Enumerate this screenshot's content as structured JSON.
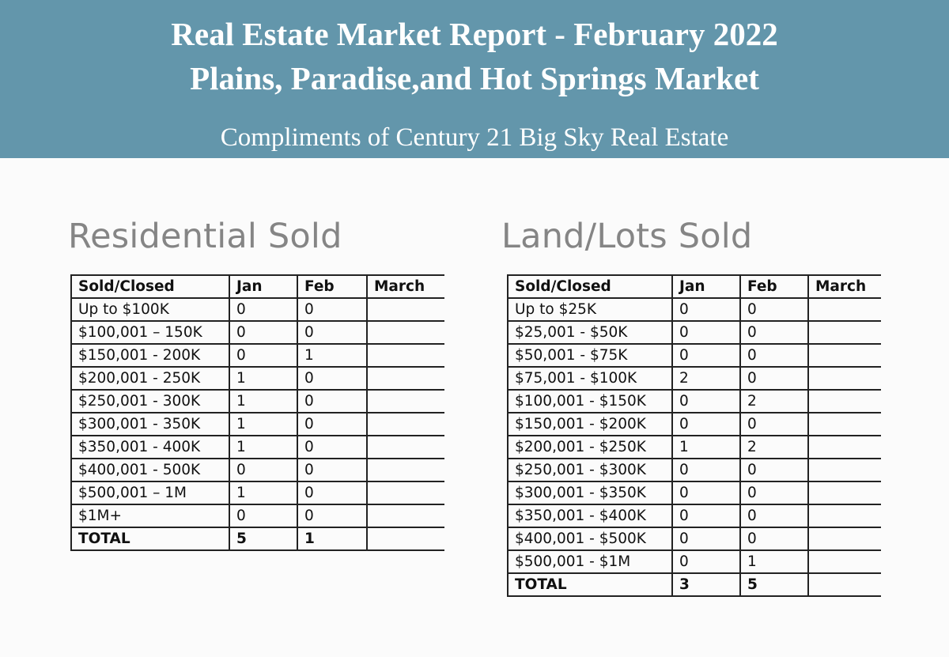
{
  "header": {
    "title_line1": "Real Estate Market Report - February 2022",
    "title_line2": "Plains, Paradise,and Hot Springs Market",
    "subtitle": "Compliments of Century 21 Big Sky Real Estate",
    "background_color": "#6396ab"
  },
  "residential": {
    "title": "Residential Sold",
    "columns": [
      "Sold/Closed",
      "Jan",
      "Feb",
      "March"
    ],
    "rows": [
      {
        "range": "Up to $100K",
        "jan": "0",
        "feb": "0",
        "march": ""
      },
      {
        "range": "$100,001 – 150K",
        "jan": "0",
        "feb": "0",
        "march": ""
      },
      {
        "range": "$150,001 - 200K",
        "jan": "0",
        "feb": "1",
        "march": ""
      },
      {
        "range": "$200,001 - 250K",
        "jan": "1",
        "feb": "0",
        "march": ""
      },
      {
        "range": "$250,001 - 300K",
        "jan": "1",
        "feb": "0",
        "march": ""
      },
      {
        "range": "$300,001 - 350K",
        "jan": "1",
        "feb": "0",
        "march": ""
      },
      {
        "range": "$350,001 - 400K",
        "jan": "1",
        "feb": "0",
        "march": ""
      },
      {
        "range": "$400,001 - 500K",
        "jan": "0",
        "feb": "0",
        "march": ""
      },
      {
        "range": "$500,001 – 1M",
        "jan": "1",
        "feb": "0",
        "march": ""
      },
      {
        "range": "$1M+",
        "jan": "0",
        "feb": "0",
        "march": ""
      }
    ],
    "total": {
      "range": "TOTAL",
      "jan": "5",
      "feb": "1",
      "march": ""
    }
  },
  "land": {
    "title": "Land/Lots Sold",
    "columns": [
      "Sold/Closed",
      "Jan",
      "Feb",
      "March"
    ],
    "rows": [
      {
        "range": "Up to $25K",
        "jan": "0",
        "feb": "0",
        "march": ""
      },
      {
        "range": "$25,001 - $50K",
        "jan": "0",
        "feb": "0",
        "march": ""
      },
      {
        "range": "$50,001 - $75K",
        "jan": "0",
        "feb": "0",
        "march": ""
      },
      {
        "range": "$75,001 - $100K",
        "jan": "2",
        "feb": "0",
        "march": ""
      },
      {
        "range": "$100,001 - $150K",
        "jan": "0",
        "feb": "2",
        "march": ""
      },
      {
        "range": "$150,001 - $200K",
        "jan": "0",
        "feb": "0",
        "march": ""
      },
      {
        "range": "$200,001 - $250K",
        "jan": "1",
        "feb": "2",
        "march": ""
      },
      {
        "range": "$250,001 - $300K",
        "jan": "0",
        "feb": "0",
        "march": ""
      },
      {
        "range": "$300,001 - $350K",
        "jan": "0",
        "feb": "0",
        "march": ""
      },
      {
        "range": "$350,001 - $400K",
        "jan": "0",
        "feb": "0",
        "march": ""
      },
      {
        "range": "$400,001 - $500K",
        "jan": "0",
        "feb": "0",
        "march": ""
      },
      {
        "range": "$500,001 - $1M",
        "jan": "0",
        "feb": "1",
        "march": ""
      }
    ],
    "total": {
      "range": "TOTAL",
      "jan": "3",
      "feb": "5",
      "march": ""
    }
  }
}
